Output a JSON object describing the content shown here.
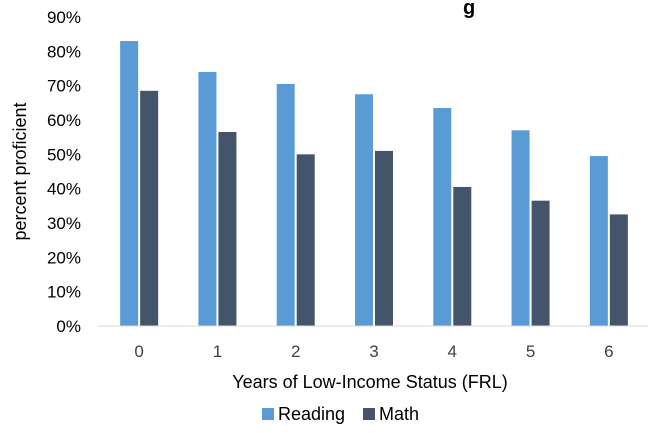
{
  "chart_data": {
    "type": "bar",
    "title": "Reading",
    "title_visible_fragment": "g",
    "xlabel": "Years of Low-Income Status (FRL)",
    "ylabel": "percent proficient",
    "categories": [
      "0",
      "1",
      "2",
      "3",
      "4",
      "5",
      "6"
    ],
    "series": [
      {
        "name": "Reading",
        "color": "#5b9bd5",
        "values": [
          83,
          74,
          70.5,
          67.5,
          63.5,
          57,
          49.5
        ]
      },
      {
        "name": "Math",
        "color": "#44546a",
        "values": [
          68.5,
          56.5,
          50,
          51,
          40.5,
          36.5,
          32.5
        ]
      }
    ],
    "ylim": [
      0,
      90
    ],
    "yticks": [
      "0%",
      "10%",
      "20%",
      "30%",
      "40%",
      "50%",
      "60%",
      "70%",
      "80%",
      "90%"
    ],
    "grid": false,
    "legend": "bottom"
  }
}
